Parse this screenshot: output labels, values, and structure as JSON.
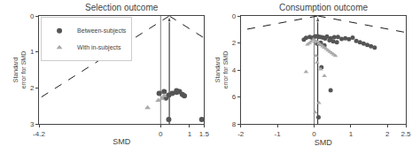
{
  "chart_data": [
    {
      "type": "scatter",
      "title": "Selection outcome",
      "x_label": "SMD",
      "y_label": "Standard\nerror for SMD",
      "xlim": [
        -4.2,
        1.5
      ],
      "ylim": [
        3.0,
        0.0
      ],
      "xticks": [
        -4.2,
        0,
        1,
        1.5
      ],
      "yticks": [
        0,
        1,
        2,
        3
      ],
      "grid": false,
      "legend": "upper left",
      "series": [
        {
          "type": "line",
          "color": "gray",
          "line_style": "solid",
          "x": [
            0,
            0
          ],
          "values": [
            3.0,
            0.0
          ]
        },
        {
          "type": "line",
          "color": "black",
          "line_style": "dashed",
          "x": [
            0.3,
            -5.58
          ],
          "values": [
            0,
            3.0
          ]
        },
        {
          "type": "line",
          "color": "black",
          "line_style": "dashed",
          "x": [
            0.3,
            6.18
          ],
          "values": [
            0,
            3.0
          ]
        },
        {
          "type": "line",
          "color": "black",
          "line_style": "solid",
          "marker": "arrow",
          "x": [
            0.3,
            0.3
          ],
          "values": [
            3.0,
            0
          ]
        },
        {
          "name": "Between-subjects",
          "type": "scatter",
          "color": "#555555",
          "marker": "circle",
          "x": [
            0.28,
            0.4,
            0.55,
            0.65,
            0.75,
            0.82,
            -0.05,
            0.18,
            1.42,
            0.28,
            0.55,
            0.12
          ],
          "values": [
            2.2,
            2.15,
            2.12,
            2.1,
            2.18,
            2.22,
            2.15,
            2.28,
            2.88,
            2.88,
            2.08,
            2.1
          ]
        },
        {
          "name": "With in-subjects",
          "type": "scatter",
          "color": "#aaaaaa",
          "marker": "triangle",
          "x": [
            0.05,
            -0.45,
            -0.08,
            0.12
          ],
          "values": [
            2.3,
            2.55,
            2.35,
            2.22
          ]
        }
      ]
    },
    {
      "type": "scatter",
      "title": "Consumption outcome",
      "x_label": "SMD",
      "y_label": "Standard\nerror for SMD",
      "xlim": [
        -2.0,
        2.5
      ],
      "ylim": [
        8.0,
        0.0
      ],
      "xticks": [
        -2,
        -1,
        0,
        1,
        2,
        2.5
      ],
      "yticks": [
        0,
        2,
        4,
        6,
        8
      ],
      "grid": false,
      "series": [
        {
          "type": "line",
          "color": "gray",
          "line_style": "solid",
          "x": [
            0,
            0
          ],
          "values": [
            8.0,
            0.0
          ]
        },
        {
          "type": "line",
          "color": "black",
          "line_style": "dashed",
          "x": [
            0.1,
            -15.58
          ],
          "values": [
            0,
            8.0
          ]
        },
        {
          "type": "line",
          "color": "black",
          "line_style": "dashed",
          "x": [
            0.1,
            15.78
          ],
          "values": [
            0,
            8.0
          ]
        },
        {
          "type": "line",
          "color": "black",
          "line_style": "solid",
          "marker": "arrow",
          "x": [
            0.1,
            0.1
          ],
          "values": [
            8.0,
            0
          ]
        },
        {
          "name": "Between-subjects",
          "type": "scatter",
          "color": "#555555",
          "marker": "circle",
          "x": [
            0.05,
            0.15,
            0.25,
            0.35,
            0.45,
            0.55,
            -0.05,
            0.1,
            0.2,
            0.3,
            0.65,
            0.85,
            0.95,
            1.05,
            1.15,
            1.25,
            1.35,
            1.45,
            1.55,
            -0.12,
            -0.22,
            0.02,
            0.75,
            -0.28,
            0.42,
            1.65,
            0.52,
            0.62,
            0.18,
            0.08,
            0.28,
            0.45,
            0.12,
            0.2
          ],
          "values": [
            1.5,
            1.55,
            1.6,
            1.52,
            1.65,
            1.58,
            1.62,
            1.5,
            1.58,
            1.68,
            1.55,
            1.65,
            1.72,
            1.6,
            1.85,
            1.95,
            2.05,
            2.15,
            2.25,
            1.55,
            1.62,
            1.52,
            1.7,
            1.75,
            1.8,
            2.35,
            1.88,
            1.95,
            1.98,
            2.05,
            2.18,
            5.5,
            7.5,
            3.8
          ]
        },
        {
          "name": "With in-subjects",
          "type": "scatter",
          "color": "#aaaaaa",
          "marker": "triangle",
          "x": [
            -0.02,
            0.03,
            0.08,
            0.13,
            0.18,
            0.23,
            0.28,
            0.33,
            0.38,
            0.43,
            -0.08,
            -0.13,
            -0.18,
            0.48,
            0.53,
            0.58,
            0.05,
            0.08,
            0.18,
            0.28,
            -0.22,
            0.13,
            0.03
          ],
          "values": [
            1.75,
            1.85,
            1.92,
            2.05,
            2.15,
            2.25,
            2.35,
            2.45,
            2.55,
            2.65,
            1.9,
            2.02,
            2.12,
            2.75,
            2.85,
            2.95,
            2.95,
            3.45,
            3.95,
            4.45,
            4.15,
            6.45,
            7.15
          ]
        }
      ]
    }
  ]
}
